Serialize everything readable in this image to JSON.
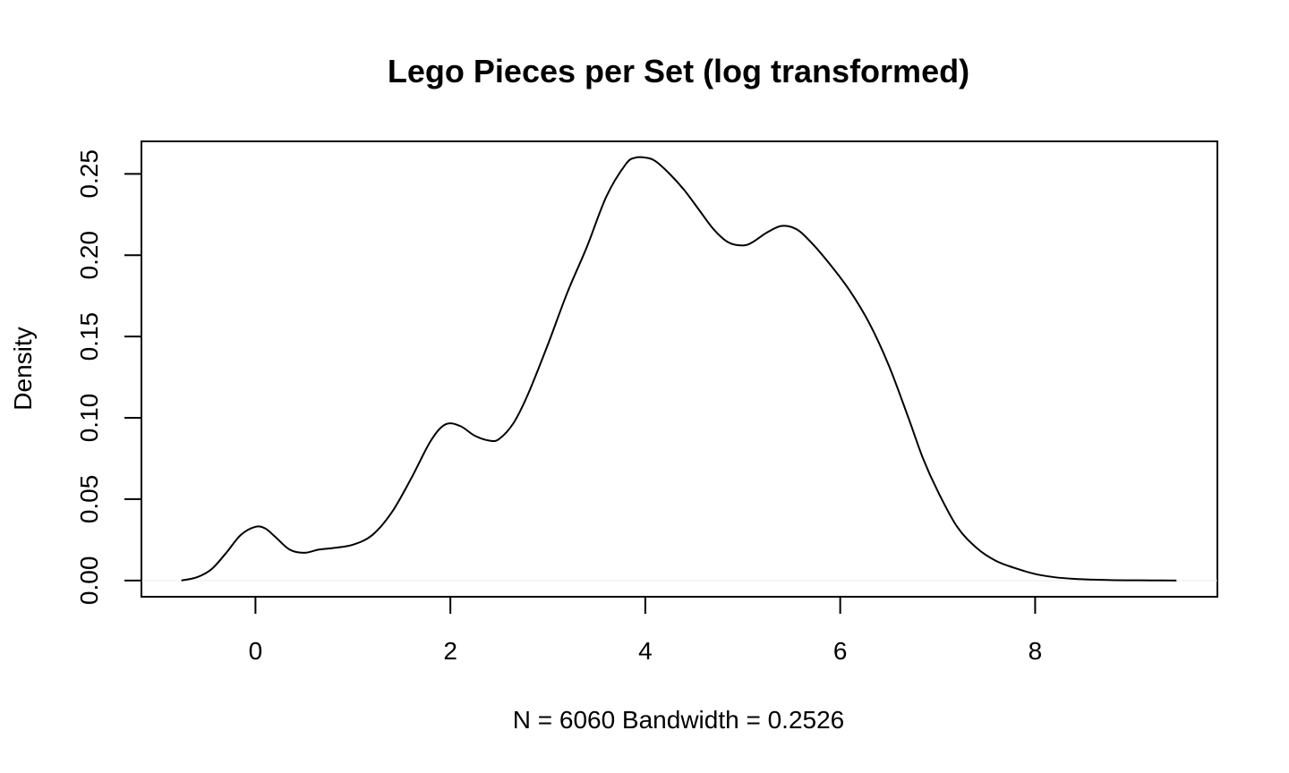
{
  "chart_data": {
    "type": "line",
    "title": "Lego Pieces per Set (log transformed)",
    "xlabel": "N = 6060   Bandwidth = 0.2526",
    "ylabel": "Density",
    "xlim": [
      -1.17,
      9.87
    ],
    "ylim": [
      -0.01,
      0.27
    ],
    "x_ticks": [
      0,
      2,
      4,
      6,
      8
    ],
    "x_tick_labels": [
      "0",
      "2",
      "4",
      "6",
      "8"
    ],
    "y_ticks": [
      0.0,
      0.05,
      0.1,
      0.15,
      0.2,
      0.25
    ],
    "y_tick_labels": [
      "0.00",
      "0.05",
      "0.10",
      "0.15",
      "0.20",
      "0.25"
    ],
    "grid": false,
    "baseline": 0,
    "series": [
      {
        "color": "#000000",
        "x": [
          -0.76,
          -0.6,
          -0.45,
          -0.3,
          -0.15,
          0.0,
          0.1,
          0.2,
          0.35,
          0.5,
          0.65,
          0.8,
          1.0,
          1.2,
          1.4,
          1.6,
          1.8,
          1.95,
          2.1,
          2.25,
          2.4,
          2.5,
          2.65,
          2.8,
          3.0,
          3.2,
          3.4,
          3.6,
          3.8,
          3.9,
          4.0,
          4.1,
          4.25,
          4.4,
          4.55,
          4.7,
          4.85,
          5.0,
          5.1,
          5.25,
          5.4,
          5.55,
          5.7,
          5.9,
          6.1,
          6.3,
          6.5,
          6.7,
          6.85,
          7.0,
          7.2,
          7.4,
          7.6,
          7.8,
          8.0,
          8.2,
          8.4,
          8.6,
          8.8,
          9.0,
          9.2,
          9.45
        ],
        "y": [
          0.0,
          0.002,
          0.007,
          0.017,
          0.028,
          0.033,
          0.032,
          0.027,
          0.019,
          0.017,
          0.019,
          0.02,
          0.022,
          0.028,
          0.042,
          0.063,
          0.086,
          0.096,
          0.095,
          0.089,
          0.086,
          0.087,
          0.097,
          0.115,
          0.145,
          0.177,
          0.205,
          0.236,
          0.256,
          0.26,
          0.26,
          0.258,
          0.25,
          0.24,
          0.228,
          0.216,
          0.208,
          0.206,
          0.208,
          0.214,
          0.218,
          0.216,
          0.208,
          0.194,
          0.178,
          0.158,
          0.132,
          0.1,
          0.075,
          0.055,
          0.033,
          0.02,
          0.012,
          0.0075,
          0.004,
          0.002,
          0.001,
          0.0005,
          0.0002,
          0.0001,
          5e-05,
          0.0
        ]
      }
    ]
  }
}
